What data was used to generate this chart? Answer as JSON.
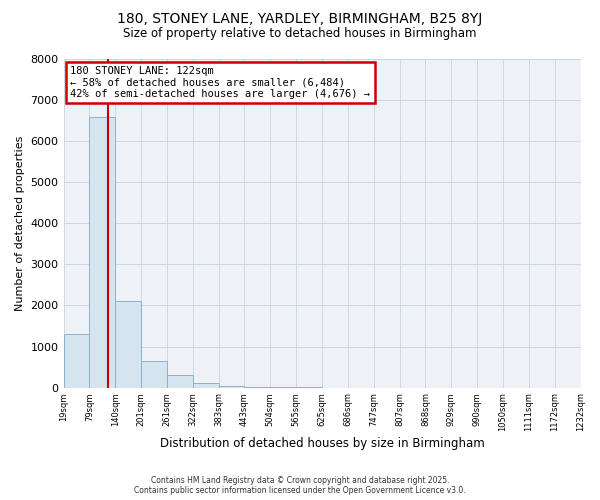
{
  "title1": "180, STONEY LANE, YARDLEY, BIRMINGHAM, B25 8YJ",
  "title2": "Size of property relative to detached houses in Birmingham",
  "xlabel": "Distribution of detached houses by size in Birmingham",
  "ylabel": "Number of detached properties",
  "bar_values": [
    1300,
    6600,
    2100,
    650,
    300,
    100,
    50,
    10,
    5,
    3,
    2,
    2,
    2,
    2,
    2,
    2,
    2,
    2,
    2,
    2
  ],
  "bar_labels": [
    "19sqm",
    "79sqm",
    "140sqm",
    "201sqm",
    "261sqm",
    "322sqm",
    "383sqm",
    "443sqm",
    "504sqm",
    "565sqm",
    "625sqm",
    "686sqm",
    "747sqm",
    "807sqm",
    "868sqm",
    "929sqm",
    "990sqm",
    "1050sqm",
    "1111sqm",
    "1172sqm",
    "1232sqm"
  ],
  "bar_color": "#d6e4f0",
  "bar_edge_color": "#8ab4cc",
  "background_color": "#ffffff",
  "plot_bg_color": "#eef2f7",
  "property_label": "180 STONEY LANE: 122sqm",
  "annotation_line1": "← 58% of detached houses are smaller (6,484)",
  "annotation_line2": "42% of semi-detached houses are larger (4,676) →",
  "annotation_box_color": "#cc0000",
  "property_line_color": "#cc0000",
  "ylim": [
    0,
    8000
  ],
  "yticks": [
    0,
    1000,
    2000,
    3000,
    4000,
    5000,
    6000,
    7000,
    8000
  ],
  "footer1": "Contains HM Land Registry data © Crown copyright and database right 2025.",
  "footer2": "Contains public sector information licensed under the Open Government Licence v3.0.",
  "grid_color": "#c8d4e0",
  "property_bin_edge": 1.5
}
